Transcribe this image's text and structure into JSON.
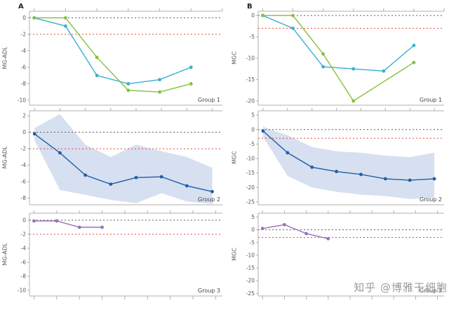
{
  "figure_labels": {
    "a": "A",
    "b": "B"
  },
  "watermark": "知乎 @博雅干细胞",
  "colors": {
    "teal": "#3aafcf",
    "green": "#86bf3e",
    "blue": "#1f5fa8",
    "purple": "#9a72b8",
    "band": "#cdd8ec",
    "red_line": "#e0473c",
    "zero_line": "#5a5a5a",
    "axis": "#b0b0b0",
    "text": "#555555"
  },
  "chart_data": [
    {
      "id": "a1",
      "type": "line",
      "ylabel": "MG-ADL",
      "group_label": "Group 1",
      "ylim": [
        0.8,
        -10.6
      ],
      "yticks": [
        0,
        -2,
        -4,
        -6,
        -8,
        -10
      ],
      "xlim": [
        -0.15,
        6
      ],
      "xticks": [
        0,
        1,
        2,
        3,
        4,
        5,
        6
      ],
      "zero_line": 0,
      "threshold_line": -2,
      "bottom_ticks": false,
      "series": [
        {
          "name": "patient-teal",
          "color_key": "teal",
          "x": [
            0,
            1,
            2,
            3,
            4,
            5
          ],
          "y": [
            0,
            -1,
            -7,
            -8,
            -7.5,
            -6
          ]
        },
        {
          "name": "patient-green",
          "color_key": "green",
          "x": [
            0,
            1,
            2,
            3,
            4,
            5
          ],
          "y": [
            0,
            0,
            -4.8,
            -8.8,
            -9,
            -8
          ]
        }
      ]
    },
    {
      "id": "b1",
      "type": "line",
      "ylabel": "MGC",
      "group_label": "Group 1",
      "ylim": [
        1,
        -21
      ],
      "yticks": [
        0,
        -5,
        -10,
        -15,
        -20
      ],
      "xlim": [
        -0.15,
        6
      ],
      "xticks": [
        0,
        1,
        2,
        3,
        4,
        5,
        6
      ],
      "zero_line": 0,
      "threshold_line": -3,
      "bottom_ticks": false,
      "series": [
        {
          "name": "patient-teal",
          "color_key": "teal",
          "x": [
            0,
            1,
            2,
            3,
            4,
            5
          ],
          "y": [
            0,
            -3,
            -12,
            -12.5,
            -13,
            -7
          ]
        },
        {
          "name": "patient-green",
          "color_key": "green",
          "x": [
            0,
            1,
            2,
            3,
            5
          ],
          "y": [
            0,
            0,
            -9,
            -20,
            -11
          ]
        }
      ]
    },
    {
      "id": "a2",
      "type": "line",
      "ylabel": "MG-ADL",
      "group_label": "Group 2",
      "ylim": [
        2.6,
        -8.8
      ],
      "yticks": [
        2,
        0,
        -2,
        -4,
        -6,
        -8
      ],
      "xlim": [
        -0.2,
        7.4
      ],
      "xticks": [
        0,
        1,
        2,
        3,
        4,
        5,
        6,
        7
      ],
      "zero_line": 0,
      "threshold_line": -2,
      "bottom_ticks": false,
      "band": {
        "x": [
          0,
          1,
          2,
          3,
          4,
          5,
          6,
          7
        ],
        "upper": [
          0.5,
          2.2,
          -1.5,
          -3,
          -1.5,
          -2.3,
          -3,
          -4.3
        ],
        "lower": [
          -1,
          -7,
          -7.6,
          -8.2,
          -8.6,
          -7.4,
          -8.4,
          -8.7
        ]
      },
      "series": [
        {
          "name": "group-mean",
          "color_key": "blue",
          "x": [
            0,
            1,
            2,
            3,
            4,
            5,
            6,
            7
          ],
          "y": [
            -0.2,
            -2.5,
            -5.2,
            -6.3,
            -5.5,
            -5.4,
            -6.5,
            -7.2
          ]
        }
      ]
    },
    {
      "id": "b2",
      "type": "line",
      "ylabel": "MGC",
      "group_label": "Group 2",
      "ylim": [
        6.5,
        -26
      ],
      "yticks": [
        5,
        0,
        -5,
        -10,
        -15,
        -20,
        -25
      ],
      "xlim": [
        -0.2,
        7.4
      ],
      "xticks": [
        0,
        1,
        2,
        3,
        4,
        5,
        6,
        7
      ],
      "zero_line": 0,
      "threshold_line": -3,
      "bottom_ticks": false,
      "band": {
        "x": [
          0,
          1,
          2,
          3,
          4,
          5,
          6,
          7
        ],
        "upper": [
          1,
          -2,
          -6,
          -7.5,
          -8,
          -9,
          -9.5,
          -8
        ],
        "lower": [
          -2.5,
          -16,
          -20,
          -21.5,
          -22.5,
          -23,
          -24,
          -23.5
        ]
      },
      "series": [
        {
          "name": "group-mean",
          "color_key": "blue",
          "x": [
            0,
            1,
            2,
            3,
            4,
            5,
            6,
            7
          ],
          "y": [
            -0.5,
            -8,
            -13,
            -14.5,
            -15.5,
            -17,
            -17.5,
            -17
          ]
        }
      ]
    },
    {
      "id": "a3",
      "type": "line",
      "ylabel": "MG-ADL",
      "group_label": "Group 3",
      "ylim": [
        1,
        -10.8
      ],
      "yticks": [
        0,
        -2,
        -4,
        -6,
        -8,
        -10
      ],
      "xlim": [
        -0.2,
        8.3
      ],
      "xticks": [
        0,
        1,
        2,
        3,
        4,
        5,
        6,
        7,
        8
      ],
      "zero_line": 0,
      "threshold_line": -2,
      "bottom_ticks": true,
      "series": [
        {
          "name": "patient-purple",
          "color_key": "purple",
          "x": [
            0,
            1,
            2,
            3
          ],
          "y": [
            -0.1,
            -0.1,
            -1,
            -1
          ]
        }
      ]
    },
    {
      "id": "b3",
      "type": "line",
      "ylabel": "MGC",
      "group_label": "Group 3",
      "ylim": [
        6.5,
        -26
      ],
      "yticks": [
        5,
        0,
        -5,
        -10,
        -15,
        -20,
        -25
      ],
      "xlim": [
        -0.2,
        8.3
      ],
      "xticks": [
        0,
        1,
        2,
        3,
        4,
        5,
        6,
        7,
        8
      ],
      "zero_line": 0,
      "threshold_line": -3,
      "bottom_ticks": true,
      "series": [
        {
          "name": "patient-purple",
          "color_key": "purple",
          "x": [
            0,
            1,
            2,
            3
          ],
          "y": [
            0.5,
            2,
            -1.5,
            -3.5
          ]
        }
      ]
    }
  ]
}
